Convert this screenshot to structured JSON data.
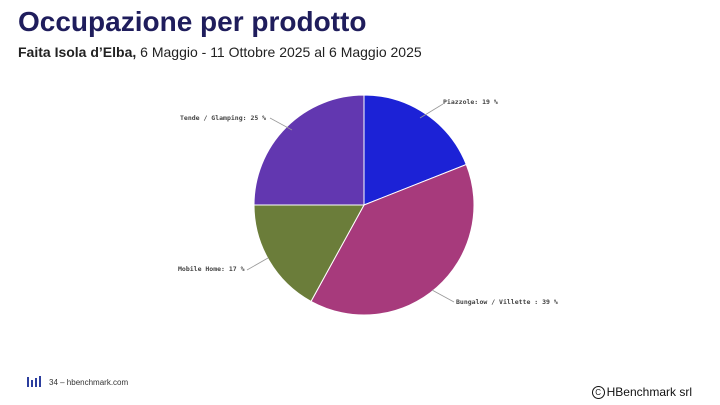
{
  "header": {
    "title": "Occupazione per prodotto",
    "subtitle_location": "Faita Isola d’Elba,",
    "subtitle_period": " 6 Maggio - 11 Ottobre 2025 al 6 Maggio 2025"
  },
  "chart_data": {
    "type": "pie",
    "slices": [
      {
        "label": "Piazzole: 19 %",
        "value": 19,
        "color": "#1c22d6"
      },
      {
        "label": "Bungalow / Villette : 39 %",
        "value": 39,
        "color": "#a73a7c"
      },
      {
        "label": "Mobile Home: 17 %",
        "value": 17,
        "color": "#6b7d3a"
      },
      {
        "label": "Tende / Glamping: 25 %",
        "value": 25,
        "color": "#6237b0"
      }
    ]
  },
  "footer": {
    "page_ref": "34 – hbenchmark.com",
    "copyright": "HBenchmark srl",
    "copyright_symbol": "C"
  }
}
